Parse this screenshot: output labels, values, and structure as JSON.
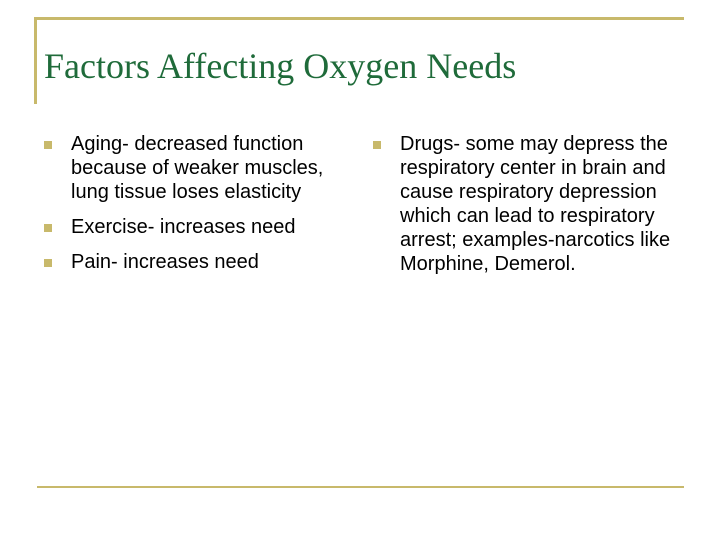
{
  "slide": {
    "title": "Factors Affecting Oxygen Needs",
    "left_items": [
      "Aging- decreased function because of weaker muscles, lung tissue loses elasticity",
      "Exercise- increases need",
      "Pain- increases need"
    ],
    "right_items": [
      "Drugs- some may depress the respiratory center in brain and cause respiratory depression which can lead to respiratory arrest; examples-narcotics like Morphine, Demerol."
    ],
    "colors": {
      "title": "#1f6b3a",
      "accent": "#c8b96b",
      "text": "#000000"
    },
    "bullet_icon": "square-bullet-icon"
  }
}
